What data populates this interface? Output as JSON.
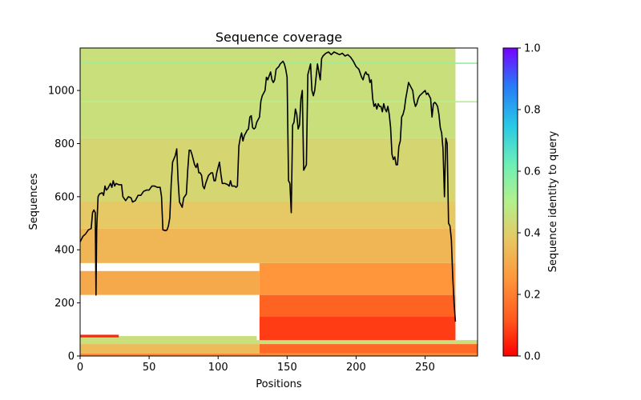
{
  "chart_data": {
    "type": "heatmap",
    "title": "Sequence coverage",
    "xlabel": "Positions",
    "ylabel": "Sequences",
    "xlim": [
      0,
      288
    ],
    "ylim": [
      0,
      1160
    ],
    "x_ticks": [
      "0",
      "50",
      "100",
      "150",
      "200",
      "250"
    ],
    "y_ticks": [
      "0",
      "200",
      "400",
      "600",
      "800",
      "1000"
    ],
    "colorbar": {
      "label": "Sequence identity to query",
      "min": 0.0,
      "max": 1.0,
      "ticks": [
        "0.0",
        "0.2",
        "0.4",
        "0.6",
        "0.8",
        "1.0"
      ],
      "colormap": "rainbow_r"
    },
    "coverage_line": {
      "name": "coverage",
      "color": "#000000",
      "points": [
        [
          0,
          430
        ],
        [
          2,
          450
        ],
        [
          4,
          460
        ],
        [
          6,
          475
        ],
        [
          8,
          480
        ],
        [
          9,
          540
        ],
        [
          10,
          550
        ],
        [
          11,
          540
        ],
        [
          11.5,
          230
        ],
        [
          12,
          480
        ],
        [
          13,
          600
        ],
        [
          14,
          610
        ],
        [
          16,
          615
        ],
        [
          17,
          605
        ],
        [
          18,
          640
        ],
        [
          19,
          625
        ],
        [
          20,
          630
        ],
        [
          22,
          650
        ],
        [
          23,
          635
        ],
        [
          24,
          660
        ],
        [
          25,
          640
        ],
        [
          26,
          650
        ],
        [
          28,
          645
        ],
        [
          30,
          645
        ],
        [
          31,
          600
        ],
        [
          33,
          585
        ],
        [
          35,
          600
        ],
        [
          37,
          595
        ],
        [
          38,
          580
        ],
        [
          40,
          585
        ],
        [
          42,
          605
        ],
        [
          44,
          605
        ],
        [
          46,
          620
        ],
        [
          48,
          625
        ],
        [
          50,
          625
        ],
        [
          52,
          640
        ],
        [
          54,
          640
        ],
        [
          56,
          635
        ],
        [
          58,
          635
        ],
        [
          59,
          600
        ],
        [
          60,
          475
        ],
        [
          62,
          472
        ],
        [
          63,
          475
        ],
        [
          64,
          490
        ],
        [
          65,
          520
        ],
        [
          66,
          650
        ],
        [
          67,
          730
        ],
        [
          69,
          755
        ],
        [
          70,
          780
        ],
        [
          71,
          660
        ],
        [
          72,
          580
        ],
        [
          73,
          570
        ],
        [
          74,
          560
        ],
        [
          75,
          595
        ],
        [
          77,
          610
        ],
        [
          78,
          700
        ],
        [
          79,
          775
        ],
        [
          80,
          775
        ],
        [
          81,
          760
        ],
        [
          83,
          720
        ],
        [
          84,
          710
        ],
        [
          85,
          725
        ],
        [
          86,
          690
        ],
        [
          87,
          690
        ],
        [
          88,
          680
        ],
        [
          89,
          640
        ],
        [
          90,
          630
        ],
        [
          91,
          650
        ],
        [
          93,
          680
        ],
        [
          95,
          690
        ],
        [
          96,
          690
        ],
        [
          97,
          660
        ],
        [
          98,
          660
        ],
        [
          99,
          690
        ],
        [
          101,
          730
        ],
        [
          102,
          685
        ],
        [
          103,
          650
        ],
        [
          105,
          650
        ],
        [
          107,
          645
        ],
        [
          108,
          640
        ],
        [
          109,
          660
        ],
        [
          110,
          640
        ],
        [
          112,
          640
        ],
        [
          113,
          635
        ],
        [
          114,
          640
        ],
        [
          115,
          790
        ],
        [
          116,
          820
        ],
        [
          117,
          840
        ],
        [
          118,
          810
        ],
        [
          119,
          830
        ],
        [
          120,
          840
        ],
        [
          121,
          850
        ],
        [
          122,
          855
        ],
        [
          123,
          900
        ],
        [
          124,
          905
        ],
        [
          125,
          860
        ],
        [
          126,
          855
        ],
        [
          127,
          860
        ],
        [
          128,
          880
        ],
        [
          130,
          900
        ],
        [
          131,
          960
        ],
        [
          132,
          980
        ],
        [
          133,
          990
        ],
        [
          134,
          1000
        ],
        [
          135,
          1050
        ],
        [
          136,
          1040
        ],
        [
          138,
          1070
        ],
        [
          139,
          1040
        ],
        [
          140,
          1030
        ],
        [
          141,
          1040
        ],
        [
          142,
          1080
        ],
        [
          144,
          1090
        ],
        [
          145,
          1100
        ],
        [
          146,
          1105
        ],
        [
          147,
          1110
        ],
        [
          148,
          1100
        ],
        [
          149,
          1080
        ],
        [
          150,
          1050
        ],
        [
          151,
          660
        ],
        [
          152,
          650
        ],
        [
          153,
          540
        ],
        [
          154,
          870
        ],
        [
          155,
          880
        ],
        [
          156,
          930
        ],
        [
          157,
          910
        ],
        [
          158,
          855
        ],
        [
          159,
          870
        ],
        [
          160,
          970
        ],
        [
          161,
          1000
        ],
        [
          162,
          700
        ],
        [
          163,
          710
        ],
        [
          164,
          720
        ],
        [
          165,
          1060
        ],
        [
          166,
          1080
        ],
        [
          167,
          1100
        ],
        [
          168,
          1000
        ],
        [
          169,
          980
        ],
        [
          170,
          1000
        ],
        [
          171,
          1050
        ],
        [
          172,
          1100
        ],
        [
          173,
          1070
        ],
        [
          174,
          1040
        ],
        [
          175,
          1120
        ],
        [
          176,
          1130
        ],
        [
          178,
          1140
        ],
        [
          180,
          1145
        ],
        [
          182,
          1135
        ],
        [
          184,
          1145
        ],
        [
          186,
          1140
        ],
        [
          188,
          1135
        ],
        [
          190,
          1140
        ],
        [
          192,
          1130
        ],
        [
          194,
          1135
        ],
        [
          196,
          1125
        ],
        [
          198,
          1110
        ],
        [
          200,
          1090
        ],
        [
          202,
          1080
        ],
        [
          204,
          1050
        ],
        [
          205,
          1040
        ],
        [
          206,
          1060
        ],
        [
          207,
          1070
        ],
        [
          208,
          1060
        ],
        [
          209,
          1060
        ],
        [
          210,
          1030
        ],
        [
          211,
          1040
        ],
        [
          212,
          970
        ],
        [
          213,
          940
        ],
        [
          214,
          950
        ],
        [
          215,
          930
        ],
        [
          216,
          950
        ],
        [
          217,
          940
        ],
        [
          218,
          940
        ],
        [
          219,
          920
        ],
        [
          220,
          950
        ],
        [
          221,
          930
        ],
        [
          222,
          920
        ],
        [
          223,
          940
        ],
        [
          224,
          910
        ],
        [
          225,
          860
        ],
        [
          226,
          760
        ],
        [
          227,
          740
        ],
        [
          228,
          750
        ],
        [
          229,
          720
        ],
        [
          230,
          720
        ],
        [
          231,
          790
        ],
        [
          232,
          810
        ],
        [
          233,
          900
        ],
        [
          234,
          910
        ],
        [
          235,
          930
        ],
        [
          236,
          970
        ],
        [
          237,
          1000
        ],
        [
          238,
          1030
        ],
        [
          239,
          1020
        ],
        [
          240,
          1010
        ],
        [
          241,
          1000
        ],
        [
          242,
          960
        ],
        [
          243,
          940
        ],
        [
          244,
          950
        ],
        [
          245,
          970
        ],
        [
          246,
          980
        ],
        [
          248,
          990
        ],
        [
          250,
          1000
        ],
        [
          251,
          985
        ],
        [
          252,
          990
        ],
        [
          253,
          980
        ],
        [
          254,
          970
        ],
        [
          255,
          900
        ],
        [
          256,
          950
        ],
        [
          257,
          955
        ],
        [
          258,
          950
        ],
        [
          259,
          940
        ],
        [
          260,
          910
        ],
        [
          261,
          860
        ],
        [
          262,
          840
        ],
        [
          263,
          780
        ],
        [
          264,
          600
        ],
        [
          265,
          820
        ],
        [
          266,
          800
        ],
        [
          267,
          500
        ],
        [
          268,
          490
        ],
        [
          269,
          440
        ],
        [
          270,
          300
        ],
        [
          271,
          200
        ],
        [
          272,
          130
        ]
      ]
    },
    "heatmap_regions": [
      {
        "x": [
          0,
          288
        ],
        "y": [
          0,
          10
        ],
        "identity": 0.22
      },
      {
        "x": [
          0,
          130
        ],
        "y": [
          10,
          45
        ],
        "identity": 0.35
      },
      {
        "x": [
          130,
          288
        ],
        "y": [
          10,
          45
        ],
        "identity": 0.15
      },
      {
        "x": [
          0,
          288
        ],
        "y": [
          45,
          60
        ],
        "identity": 0.45
      },
      {
        "x": [
          0,
          128
        ],
        "y": [
          60,
          75
        ],
        "identity": 0.45
      },
      {
        "x": [
          0,
          28
        ],
        "y": [
          70,
          80
        ],
        "identity": 0.05
      },
      {
        "x": [
          130,
          272
        ],
        "y": [
          60,
          150
        ],
        "identity": 0.08
      },
      {
        "x": [
          130,
          272
        ],
        "y": [
          150,
          230
        ],
        "identity": 0.14
      },
      {
        "x": [
          0,
          130
        ],
        "y": [
          230,
          320
        ],
        "identity": 0.3
      },
      {
        "x": [
          130,
          272
        ],
        "y": [
          230,
          350
        ],
        "identity": 0.25
      },
      {
        "x": [
          0,
          272
        ],
        "y": [
          350,
          480
        ],
        "identity": 0.33
      },
      {
        "x": [
          0,
          272
        ],
        "y": [
          480,
          580
        ],
        "identity": 0.38
      },
      {
        "x": [
          0,
          272
        ],
        "y": [
          580,
          820
        ],
        "identity": 0.42
      },
      {
        "x": [
          0,
          272
        ],
        "y": [
          820,
          1160
        ],
        "identity": 0.45
      },
      {
        "x": [
          0,
          288
        ],
        "y": [
          1100,
          1105
        ],
        "identity": 0.55
      },
      {
        "x": [
          0,
          288
        ],
        "y": [
          955,
          960
        ],
        "identity": 0.5
      }
    ]
  }
}
